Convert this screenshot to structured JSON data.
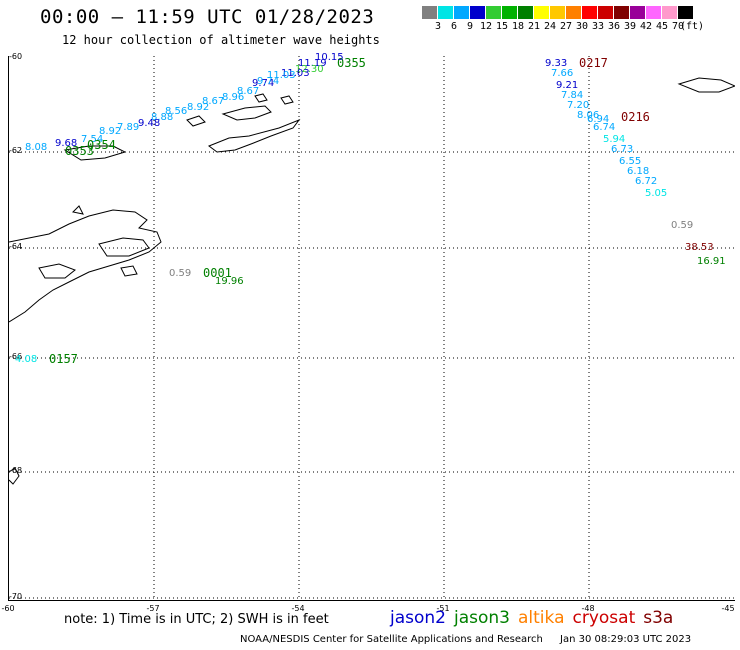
{
  "header": {
    "title": "00:00 – 11:59 UTC 01/28/2023",
    "subtitle": "12 hour collection of altimeter wave heights"
  },
  "colorbar": {
    "colors": [
      "#808080",
      "#00e5e5",
      "#00a8ff",
      "#0000cc",
      "#33cc33",
      "#00b200",
      "#008000",
      "#ffff00",
      "#ffc800",
      "#ff8000",
      "#ff0000",
      "#cc0000",
      "#800000",
      "#990099",
      "#ff66ff",
      "#ff99cc",
      "#000000"
    ],
    "labels": [
      "3",
      "6",
      "9",
      "12",
      "15",
      "18",
      "21",
      "24",
      "27",
      "30",
      "33",
      "36",
      "39",
      "42",
      "45",
      "70",
      "(ft)"
    ]
  },
  "axes": {
    "lat_labels": [
      "-60",
      "-62",
      "-64",
      "-66",
      "-68",
      "-70"
    ],
    "lon_labels": [
      "-60",
      "-57",
      "-54",
      "-51",
      "-48",
      "-45"
    ]
  },
  "tracks": [
    {
      "name": "track-0355",
      "time": "0355",
      "time_color": "#008000",
      "points": [
        {
          "v": "10.15",
          "c": "#0000cc"
        },
        {
          "v": "11.19",
          "c": "#0000cc"
        },
        {
          "v": "12.30",
          "c": "#33cc33"
        },
        {
          "v": "11.03",
          "c": "#0000cc"
        },
        {
          "v": "11.03",
          "c": "#00a8ff"
        },
        {
          "v": "9.74",
          "c": "#0000cc"
        },
        {
          "v": "9.74",
          "c": "#00a8ff"
        },
        {
          "v": "8.67",
          "c": "#00a8ff"
        },
        {
          "v": "8.96",
          "c": "#00a8ff"
        },
        {
          "v": "8.67",
          "c": "#00a8ff"
        },
        {
          "v": "8.92",
          "c": "#00a8ff"
        },
        {
          "v": "8.56",
          "c": "#00a8ff"
        },
        {
          "v": "8.88",
          "c": "#00a8ff"
        },
        {
          "v": "9.48",
          "c": "#0000cc"
        },
        {
          "v": "7.89",
          "c": "#00a8ff"
        },
        {
          "v": "8.92",
          "c": "#00a8ff"
        },
        {
          "v": "7.54",
          "c": "#00a8ff"
        },
        {
          "v": "9.68",
          "c": "#0000cc"
        },
        {
          "v": "8.08",
          "c": "#00a8ff"
        }
      ]
    },
    {
      "name": "track-0354",
      "time": "0354",
      "time_color": "#008000",
      "points": []
    },
    {
      "name": "track-0353",
      "time": "0353",
      "time_color": "#008000",
      "points": []
    },
    {
      "name": "track-0217",
      "time": "0217",
      "time_color": "#800000",
      "points": [
        {
          "v": "9.33",
          "c": "#0000cc"
        },
        {
          "v": "7.66",
          "c": "#00a8ff"
        },
        {
          "v": "9.21",
          "c": "#0000cc"
        },
        {
          "v": "7.84",
          "c": "#00a8ff"
        },
        {
          "v": "7.20",
          "c": "#00a8ff"
        },
        {
          "v": "8.06",
          "c": "#00a8ff"
        },
        {
          "v": "6.94",
          "c": "#00a8ff"
        }
      ]
    },
    {
      "name": "track-0216",
      "time": "0216",
      "time_color": "#800000",
      "points": [
        {
          "v": "6.74",
          "c": "#00a8ff"
        },
        {
          "v": "5.94",
          "c": "#00e5e5"
        },
        {
          "v": "6.73",
          "c": "#00a8ff"
        },
        {
          "v": "6.55",
          "c": "#00a8ff"
        },
        {
          "v": "6.18",
          "c": "#00a8ff"
        },
        {
          "v": "6.72",
          "c": "#00a8ff"
        },
        {
          "v": "5.05",
          "c": "#00e5e5"
        }
      ]
    },
    {
      "name": "track-0001",
      "time": "0001",
      "time_color": "#008000",
      "points": [
        {
          "v": "0.59",
          "c": "#808080"
        },
        {
          "v": "19.96",
          "c": "#008000"
        }
      ]
    },
    {
      "name": "track-0157",
      "time": "0157",
      "time_color": "#008000",
      "points": [
        {
          "v": "4.08",
          "c": "#00e5e5"
        }
      ]
    },
    {
      "name": "track-east",
      "time": "",
      "time_color": "#000000",
      "points": [
        {
          "v": "0.59",
          "c": "#808080"
        },
        {
          "v": "38.53",
          "c": "#800000"
        },
        {
          "v": "16.91",
          "c": "#008000"
        }
      ]
    }
  ],
  "footer": {
    "note": "note: 1) Time is in UTC; 2) SWH is in feet",
    "legend": [
      {
        "name": "jason2",
        "color": "#0000cc"
      },
      {
        "name": "jason3",
        "color": "#008000"
      },
      {
        "name": "altika",
        "color": "#ff8000"
      },
      {
        "name": "cryosat",
        "color": "#cc0000"
      },
      {
        "name": "s3a",
        "color": "#800000"
      }
    ],
    "credit": "NOAA/NESDIS Center for Satellite Applications and Research",
    "date": "Jan 30 08:29:03 UTC 2023"
  }
}
